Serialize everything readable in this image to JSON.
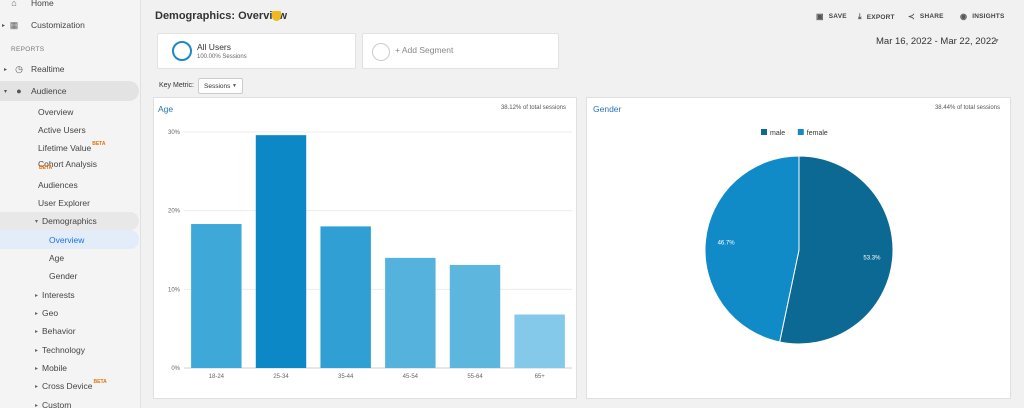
{
  "sidebar": {
    "home": "Home",
    "customization": "Customization",
    "reports_heading": "REPORTS",
    "realtime": "Realtime",
    "audience": "Audience",
    "audience_items": [
      "Overview",
      "Active Users",
      "Lifetime Value",
      "Cohort Analysis",
      "Audiences",
      "User Explorer"
    ],
    "beta": "BETA",
    "demographics": "Demographics",
    "demo_items": [
      "Overview",
      "Age",
      "Gender"
    ],
    "groups": [
      "Interests",
      "Geo",
      "Behavior",
      "Technology",
      "Mobile",
      "Cross Device",
      "Custom"
    ]
  },
  "header": {
    "title": "Demographics: Overview",
    "actions": {
      "save": "SAVE",
      "export": "EXPORT",
      "share": "SHARE",
      "insights": "INSIGHTS"
    }
  },
  "segments": {
    "active_name": "All Users",
    "active_sub": "100.00% Sessions",
    "add_label": "+ Add Segment"
  },
  "date_range": "Mar 16, 2022 - Mar 22, 2022",
  "key_metric": {
    "label": "Key Metric:",
    "value": "Sessions"
  },
  "age_panel": {
    "title": "Age",
    "pct": "38.12% of total sessions"
  },
  "gender_panel": {
    "title": "Gender",
    "pct": "38.44% of total sessions"
  },
  "colors": {
    "accent": "#1a73e8",
    "male": "#0b6994",
    "female": "#118bc8"
  },
  "chart_data": [
    {
      "type": "bar",
      "title": "Age",
      "categories": [
        "18-24",
        "25-34",
        "35-44",
        "45-54",
        "55-64",
        "65+"
      ],
      "values": [
        18.3,
        29.6,
        18.0,
        14.0,
        13.1,
        6.8
      ],
      "colors": [
        "#3ea9d9",
        "#0d88c6",
        "#2f9fd4",
        "#54b2dc",
        "#5cb6de",
        "#84c9ea"
      ],
      "ylim": [
        0,
        30
      ],
      "yticks": [
        "0%",
        "10%",
        "20%",
        "30%"
      ],
      "grid": true
    },
    {
      "type": "pie",
      "title": "Gender",
      "labels": [
        "male",
        "female"
      ],
      "values": [
        53.3,
        46.7
      ],
      "value_labels": [
        "53.3%",
        "46.7%"
      ],
      "colors": [
        "#0b6994",
        "#118bc8"
      ],
      "legend": "top"
    }
  ]
}
